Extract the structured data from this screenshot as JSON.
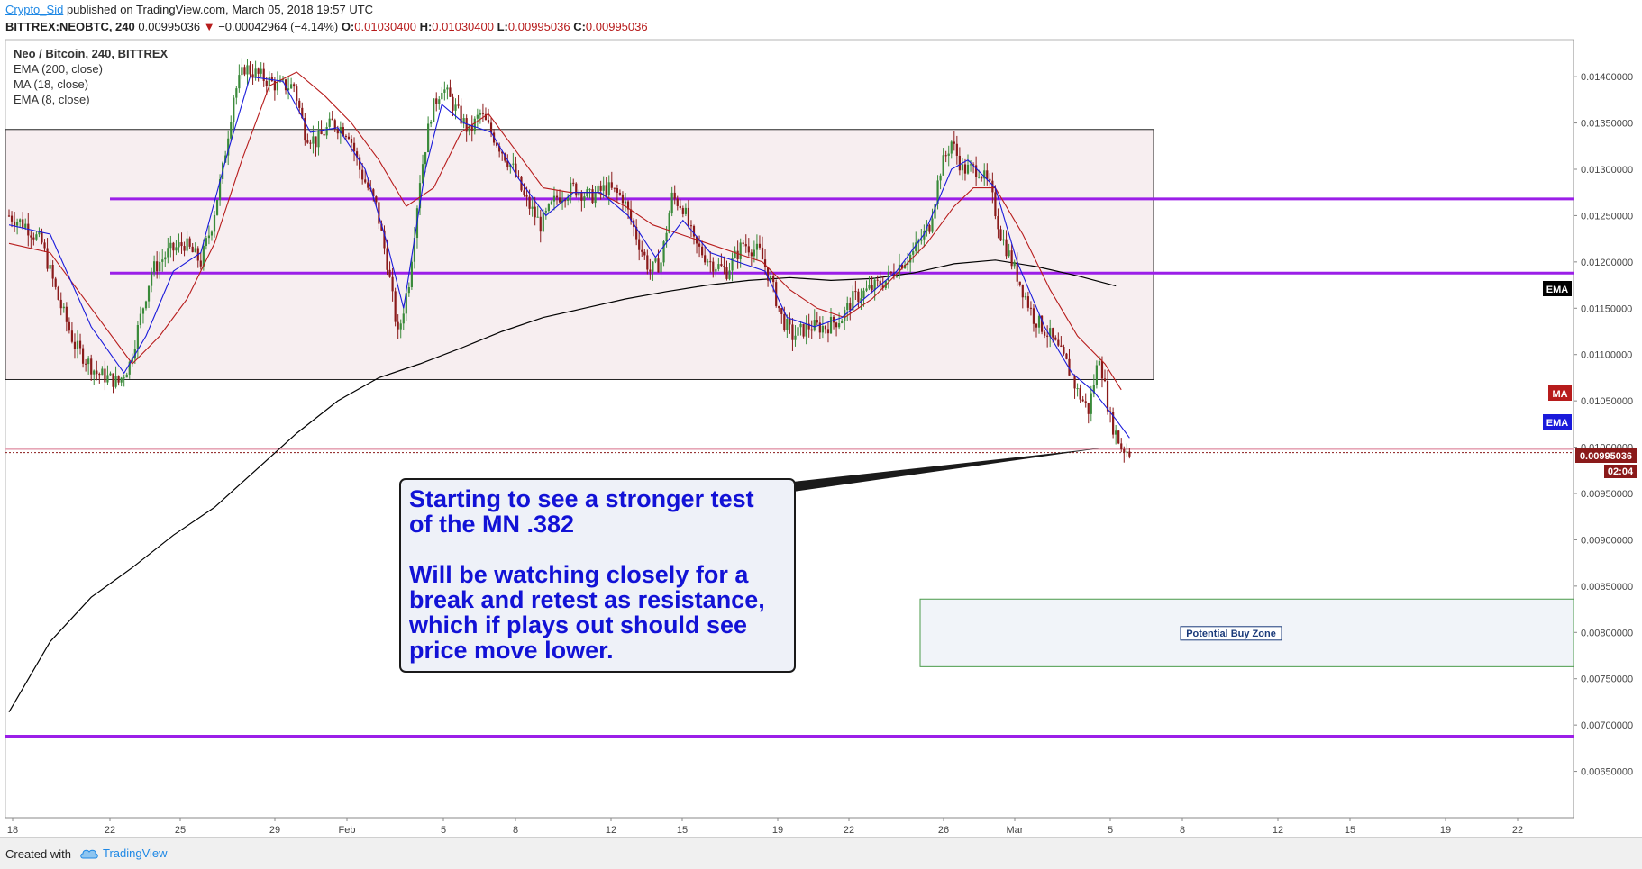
{
  "header": {
    "author": "Crypto_Sid",
    "published_text": "published on TradingView.com, March 05, 2018 19:57 UTC",
    "symbol": "BITTREX:NEOBTC, 240",
    "last": "0.00995036",
    "change": "−0.00042964 (−4.14%)",
    "open_label": "O:",
    "open": "0.01030400",
    "high_label": "H:",
    "high": "0.01030400",
    "low_label": "L:",
    "low": "0.00995036",
    "close_label": "C:",
    "close": "0.00995036"
  },
  "legend": {
    "title": "Neo / Bitcoin, 240, BITTREX",
    "ema200": "EMA (200, close)",
    "ma18": "MA (18, close)",
    "ema8": "EMA (8, close)"
  },
  "annotation": {
    "line1": "Starting to see a stronger test",
    "line2": "of the MN .382",
    "line3": "Will be watching closely for a",
    "line4": "break and retest as resistance,",
    "line5": "which if plays out should see",
    "line6": "price move lower."
  },
  "buy_zone_label": "Potential Buy Zone",
  "price_tags": {
    "ema200": "EMA",
    "ma18": "MA",
    "ema8": "EMA",
    "last": "0.00995036",
    "countdown": "02:04"
  },
  "footer": {
    "created_with": "Created with",
    "brand": "TradingView"
  },
  "colors": {
    "ema200": "#000000",
    "ma18": "#b71c1c",
    "ema8": "#1a1adb",
    "level_lines": "#9b1fe8",
    "up_candle": "#3a8a3a",
    "down_candle": "#8a1a1a",
    "range_box_fill": "#f7eef0",
    "buy_zone_fill": "#f1f4f9",
    "annotation_text": "#1212d6"
  },
  "chart_data": {
    "type": "candlestick",
    "ylim": [
      0.006,
      0.0144
    ],
    "y_ticks": [
      "0.01400000",
      "0.01350000",
      "0.01300000",
      "0.01250000",
      "0.01200000",
      "0.01150000",
      "0.01100000",
      "0.01050000",
      "0.01000000",
      "0.00950000",
      "0.00900000",
      "0.00850000",
      "0.00800000",
      "0.00750000",
      "0.00700000",
      "0.00650000"
    ],
    "x_ticks": [
      "18",
      "22",
      "25",
      "29",
      "Feb",
      "5",
      "8",
      "12",
      "15",
      "19",
      "22",
      "26",
      "Mar",
      "5",
      "8",
      "12",
      "15",
      "19",
      "22"
    ],
    "horizontal_levels": [
      0.01268,
      0.01188,
      0.00688
    ],
    "range_box": {
      "top": 0.01343,
      "bottom": 0.01073
    },
    "buy_zone": {
      "top": 0.00836,
      "bottom": 0.00763
    },
    "last_price": 0.00995036,
    "series": [
      {
        "name": "Neo / Bitcoin, 240, BITTREX",
        "type": "candles"
      },
      {
        "name": "EMA (200, close)",
        "type": "line"
      },
      {
        "name": "MA (18, close)",
        "type": "line"
      },
      {
        "name": "EMA (8, close)",
        "type": "line"
      }
    ],
    "close_path": [
      [
        0,
        0.0125
      ],
      [
        6,
        0.0124
      ],
      [
        12,
        0.0122
      ],
      [
        18,
        0.0116
      ],
      [
        24,
        0.0111
      ],
      [
        32,
        0.0108
      ],
      [
        40,
        0.0107
      ],
      [
        44,
        0.0109
      ],
      [
        48,
        0.0114
      ],
      [
        52,
        0.0119
      ],
      [
        58,
        0.0121
      ],
      [
        64,
        0.0122
      ],
      [
        70,
        0.012
      ],
      [
        74,
        0.0124
      ],
      [
        78,
        0.013
      ],
      [
        82,
        0.0138
      ],
      [
        86,
        0.0141
      ],
      [
        92,
        0.014
      ],
      [
        98,
        0.0139
      ],
      [
        104,
        0.0139
      ],
      [
        108,
        0.0134
      ],
      [
        112,
        0.0133
      ],
      [
        118,
        0.0135
      ],
      [
        124,
        0.0134
      ],
      [
        128,
        0.013
      ],
      [
        134,
        0.0126
      ],
      [
        138,
        0.012
      ],
      [
        142,
        0.0112
      ],
      [
        146,
        0.0118
      ],
      [
        150,
        0.0129
      ],
      [
        154,
        0.0136
      ],
      [
        158,
        0.0139
      ],
      [
        162,
        0.0137
      ],
      [
        168,
        0.0134
      ],
      [
        172,
        0.0136
      ],
      [
        178,
        0.0133
      ],
      [
        184,
        0.013
      ],
      [
        188,
        0.0127
      ],
      [
        194,
        0.0124
      ],
      [
        200,
        0.0127
      ],
      [
        206,
        0.0128
      ],
      [
        212,
        0.0127
      ],
      [
        218,
        0.0128
      ],
      [
        224,
        0.0127
      ],
      [
        230,
        0.0122
      ],
      [
        234,
        0.0119
      ],
      [
        238,
        0.012
      ],
      [
        242,
        0.0127
      ],
      [
        246,
        0.0126
      ],
      [
        250,
        0.0122
      ],
      [
        256,
        0.012
      ],
      [
        262,
        0.0119
      ],
      [
        268,
        0.0122
      ],
      [
        274,
        0.0121
      ],
      [
        278,
        0.0118
      ],
      [
        282,
        0.0114
      ],
      [
        286,
        0.0112
      ],
      [
        292,
        0.0113
      ],
      [
        298,
        0.0113
      ],
      [
        304,
        0.0114
      ],
      [
        308,
        0.0116
      ],
      [
        314,
        0.0117
      ],
      [
        320,
        0.0118
      ],
      [
        326,
        0.012
      ],
      [
        330,
        0.0121
      ],
      [
        336,
        0.0124
      ],
      [
        340,
        0.013
      ],
      [
        344,
        0.0133
      ],
      [
        348,
        0.013
      ],
      [
        354,
        0.013
      ],
      [
        358,
        0.0128
      ],
      [
        362,
        0.0123
      ],
      [
        366,
        0.012
      ],
      [
        370,
        0.0117
      ],
      [
        374,
        0.0114
      ],
      [
        380,
        0.0112
      ],
      [
        386,
        0.0109
      ],
      [
        390,
        0.0106
      ],
      [
        394,
        0.0104
      ],
      [
        398,
        0.011
      ],
      [
        402,
        0.0103
      ],
      [
        406,
        0.01
      ],
      [
        409,
        0.00995
      ]
    ],
    "ema200_path": [
      [
        0,
        0.00714
      ],
      [
        15,
        0.0079
      ],
      [
        30,
        0.00838
      ],
      [
        45,
        0.0087
      ],
      [
        60,
        0.00905
      ],
      [
        75,
        0.00935
      ],
      [
        90,
        0.00975
      ],
      [
        105,
        0.01015
      ],
      [
        120,
        0.0105
      ],
      [
        135,
        0.01075
      ],
      [
        150,
        0.0109
      ],
      [
        165,
        0.01107
      ],
      [
        180,
        0.01125
      ],
      [
        195,
        0.0114
      ],
      [
        210,
        0.0115
      ],
      [
        225,
        0.0116
      ],
      [
        240,
        0.01168
      ],
      [
        255,
        0.01175
      ],
      [
        270,
        0.0118
      ],
      [
        285,
        0.01183
      ],
      [
        300,
        0.0118
      ],
      [
        315,
        0.01182
      ],
      [
        330,
        0.01188
      ],
      [
        345,
        0.01198
      ],
      [
        360,
        0.01202
      ],
      [
        375,
        0.01195
      ],
      [
        390,
        0.01185
      ],
      [
        404,
        0.01174
      ]
    ],
    "ma18_path": [
      [
        0,
        0.0122
      ],
      [
        15,
        0.0121
      ],
      [
        30,
        0.0115
      ],
      [
        45,
        0.0109
      ],
      [
        55,
        0.0112
      ],
      [
        65,
        0.0116
      ],
      [
        75,
        0.0122
      ],
      [
        85,
        0.0131
      ],
      [
        95,
        0.0139
      ],
      [
        105,
        0.01405
      ],
      [
        115,
        0.0138
      ],
      [
        125,
        0.0135
      ],
      [
        135,
        0.0131
      ],
      [
        145,
        0.0126
      ],
      [
        155,
        0.0128
      ],
      [
        165,
        0.0134
      ],
      [
        175,
        0.0136
      ],
      [
        185,
        0.0132
      ],
      [
        195,
        0.0128
      ],
      [
        205,
        0.01275
      ],
      [
        215,
        0.01275
      ],
      [
        225,
        0.0126
      ],
      [
        235,
        0.0124
      ],
      [
        245,
        0.0123
      ],
      [
        255,
        0.0122
      ],
      [
        265,
        0.0121
      ],
      [
        275,
        0.012
      ],
      [
        285,
        0.0117
      ],
      [
        295,
        0.0115
      ],
      [
        305,
        0.0114
      ],
      [
        315,
        0.0116
      ],
      [
        325,
        0.0119
      ],
      [
        335,
        0.0122
      ],
      [
        345,
        0.0126
      ],
      [
        352,
        0.0128
      ],
      [
        360,
        0.0128
      ],
      [
        370,
        0.0123
      ],
      [
        380,
        0.0117
      ],
      [
        390,
        0.0112
      ],
      [
        400,
        0.0109
      ],
      [
        406,
        0.01062
      ]
    ],
    "ema8_path": [
      [
        0,
        0.0124
      ],
      [
        15,
        0.0123
      ],
      [
        30,
        0.0113
      ],
      [
        42,
        0.0108
      ],
      [
        50,
        0.0112
      ],
      [
        60,
        0.0119
      ],
      [
        70,
        0.0121
      ],
      [
        80,
        0.0132
      ],
      [
        88,
        0.014
      ],
      [
        100,
        0.01395
      ],
      [
        110,
        0.0134
      ],
      [
        120,
        0.01345
      ],
      [
        130,
        0.013
      ],
      [
        138,
        0.0122
      ],
      [
        144,
        0.0115
      ],
      [
        152,
        0.013
      ],
      [
        158,
        0.0137
      ],
      [
        166,
        0.0135
      ],
      [
        176,
        0.0134
      ],
      [
        186,
        0.0129
      ],
      [
        196,
        0.0125
      ],
      [
        206,
        0.01275
      ],
      [
        216,
        0.01275
      ],
      [
        226,
        0.0125
      ],
      [
        236,
        0.01205
      ],
      [
        246,
        0.01245
      ],
      [
        256,
        0.0121
      ],
      [
        266,
        0.012
      ],
      [
        276,
        0.0119
      ],
      [
        284,
        0.0114
      ],
      [
        294,
        0.0113
      ],
      [
        304,
        0.0114
      ],
      [
        314,
        0.01165
      ],
      [
        324,
        0.0119
      ],
      [
        334,
        0.0123
      ],
      [
        344,
        0.013
      ],
      [
        350,
        0.0131
      ],
      [
        360,
        0.0128
      ],
      [
        368,
        0.012
      ],
      [
        378,
        0.0113
      ],
      [
        388,
        0.0108
      ],
      [
        396,
        0.0106
      ],
      [
        404,
        0.0103
      ],
      [
        409,
        0.0101
      ]
    ]
  }
}
